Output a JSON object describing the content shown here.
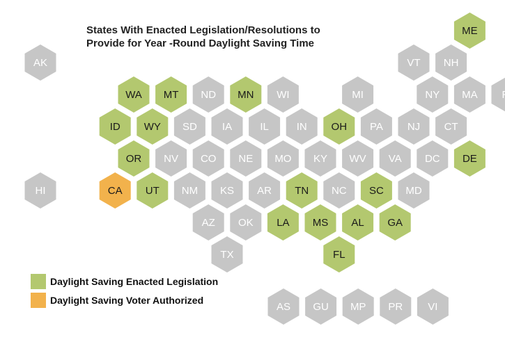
{
  "title": {
    "line1": "States With Enacted Legislation/Resolutions to",
    "line2": "Provide for Year -Round Daylight Saving Time"
  },
  "colors": {
    "enacted": "#b3c86f",
    "voter": "#f2b24c",
    "none": "#c6c6c6",
    "label_dark": "#1a1a1a",
    "label_light": "#ffffff"
  },
  "legend": [
    {
      "label": "Daylight Saving Enacted Legislation",
      "status": "enacted"
    },
    {
      "label": "Daylight Saving Voter Authorized",
      "status": "voter"
    }
  ],
  "states": [
    {
      "abbr": "ME",
      "row": 0,
      "col": 11,
      "status": "enacted"
    },
    {
      "abbr": "AK",
      "row": 1,
      "col": 0,
      "status": "none"
    },
    {
      "abbr": "VT",
      "row": 1,
      "col": 10,
      "status": "none"
    },
    {
      "abbr": "NH",
      "row": 1,
      "col": 11,
      "status": "none"
    },
    {
      "abbr": "WA",
      "row": 2,
      "col": 2,
      "status": "enacted"
    },
    {
      "abbr": "MT",
      "row": 2,
      "col": 3,
      "status": "enacted"
    },
    {
      "abbr": "ND",
      "row": 2,
      "col": 4,
      "status": "none"
    },
    {
      "abbr": "MN",
      "row": 2,
      "col": 5,
      "status": "enacted"
    },
    {
      "abbr": "WI",
      "row": 2,
      "col": 6,
      "status": "none"
    },
    {
      "abbr": "MI",
      "row": 2,
      "col": 8,
      "status": "none"
    },
    {
      "abbr": "NY",
      "row": 2,
      "col": 10,
      "status": "none"
    },
    {
      "abbr": "MA",
      "row": 2,
      "col": 11,
      "status": "none"
    },
    {
      "abbr": "RI",
      "row": 2,
      "col": 12,
      "status": "none"
    },
    {
      "abbr": "ID",
      "row": 3,
      "col": 2,
      "status": "enacted"
    },
    {
      "abbr": "WY",
      "row": 3,
      "col": 3,
      "status": "enacted"
    },
    {
      "abbr": "SD",
      "row": 3,
      "col": 4,
      "status": "none"
    },
    {
      "abbr": "IA",
      "row": 3,
      "col": 5,
      "status": "none"
    },
    {
      "abbr": "IL",
      "row": 3,
      "col": 6,
      "status": "none"
    },
    {
      "abbr": "IN",
      "row": 3,
      "col": 7,
      "status": "none"
    },
    {
      "abbr": "OH",
      "row": 3,
      "col": 8,
      "status": "enacted"
    },
    {
      "abbr": "PA",
      "row": 3,
      "col": 9,
      "status": "none"
    },
    {
      "abbr": "NJ",
      "row": 3,
      "col": 10,
      "status": "none"
    },
    {
      "abbr": "CT",
      "row": 3,
      "col": 11,
      "status": "none"
    },
    {
      "abbr": "OR",
      "row": 4,
      "col": 2,
      "status": "enacted"
    },
    {
      "abbr": "NV",
      "row": 4,
      "col": 3,
      "status": "none"
    },
    {
      "abbr": "CO",
      "row": 4,
      "col": 4,
      "status": "none"
    },
    {
      "abbr": "NE",
      "row": 4,
      "col": 5,
      "status": "none"
    },
    {
      "abbr": "MO",
      "row": 4,
      "col": 6,
      "status": "none"
    },
    {
      "abbr": "KY",
      "row": 4,
      "col": 7,
      "status": "none"
    },
    {
      "abbr": "WV",
      "row": 4,
      "col": 8,
      "status": "none"
    },
    {
      "abbr": "VA",
      "row": 4,
      "col": 9,
      "status": "none"
    },
    {
      "abbr": "DC",
      "row": 4,
      "col": 10,
      "status": "none"
    },
    {
      "abbr": "DE",
      "row": 4,
      "col": 11,
      "status": "enacted"
    },
    {
      "abbr": "HI",
      "row": 5,
      "col": 0,
      "status": "none"
    },
    {
      "abbr": "CA",
      "row": 5,
      "col": 2,
      "status": "voter"
    },
    {
      "abbr": "UT",
      "row": 5,
      "col": 3,
      "status": "enacted"
    },
    {
      "abbr": "NM",
      "row": 5,
      "col": 4,
      "status": "none"
    },
    {
      "abbr": "KS",
      "row": 5,
      "col": 5,
      "status": "none"
    },
    {
      "abbr": "AR",
      "row": 5,
      "col": 6,
      "status": "none"
    },
    {
      "abbr": "TN",
      "row": 5,
      "col": 7,
      "status": "enacted"
    },
    {
      "abbr": "NC",
      "row": 5,
      "col": 8,
      "status": "none"
    },
    {
      "abbr": "SC",
      "row": 5,
      "col": 9,
      "status": "enacted"
    },
    {
      "abbr": "MD",
      "row": 5,
      "col": 10,
      "status": "none"
    },
    {
      "abbr": "AZ",
      "row": 6,
      "col": 4,
      "status": "none"
    },
    {
      "abbr": "OK",
      "row": 6,
      "col": 5,
      "status": "none"
    },
    {
      "abbr": "LA",
      "row": 6,
      "col": 6,
      "status": "enacted"
    },
    {
      "abbr": "MS",
      "row": 6,
      "col": 7,
      "status": "enacted"
    },
    {
      "abbr": "AL",
      "row": 6,
      "col": 8,
      "status": "enacted"
    },
    {
      "abbr": "GA",
      "row": 6,
      "col": 9,
      "status": "enacted"
    },
    {
      "abbr": "TX",
      "row": 7,
      "col": 5,
      "status": "none"
    },
    {
      "abbr": "FL",
      "row": 7,
      "col": 8,
      "status": "enacted"
    }
  ],
  "territories": [
    {
      "abbr": "AS",
      "status": "none"
    },
    {
      "abbr": "GU",
      "status": "none"
    },
    {
      "abbr": "MP",
      "status": "none"
    },
    {
      "abbr": "PR",
      "status": "none"
    },
    {
      "abbr": "VI",
      "status": "none"
    }
  ]
}
